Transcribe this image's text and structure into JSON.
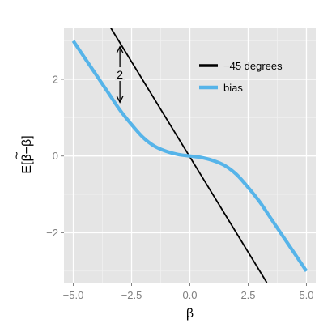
{
  "chart_data": {
    "type": "line",
    "xlabel": "β",
    "ylabel_parts": [
      "E[",
      "β",
      "−β]"
    ],
    "xlim": [
      -5.4,
      5.4
    ],
    "ylim": [
      -3.3,
      3.35
    ],
    "x_ticks": [
      -5.0,
      -2.5,
      0.0,
      2.5,
      5.0
    ],
    "x_tick_labels": [
      "−5.0",
      "−2.5",
      "0.0",
      "2.5",
      "5.0"
    ],
    "y_ticks": [
      -2,
      0,
      2
    ],
    "y_tick_labels": [
      "−2",
      "0",
      "2"
    ],
    "grid": true,
    "legend_position": "top-right",
    "series": [
      {
        "name": "−45 degrees",
        "color": "#000000",
        "x": [
          -3.4,
          3.3
        ],
        "y": [
          3.35,
          -3.3
        ]
      },
      {
        "name": "bias",
        "color": "#56b4e9",
        "x": [
          -5.0,
          -4.5,
          -4.0,
          -3.5,
          -3.0,
          -2.5,
          -2.0,
          -1.5,
          -1.0,
          -0.5,
          0.0,
          0.5,
          1.0,
          1.5,
          2.0,
          2.5,
          3.0,
          3.5,
          4.0,
          4.5,
          5.0
        ],
        "y": [
          3.0,
          2.55,
          2.1,
          1.65,
          1.2,
          0.82,
          0.48,
          0.25,
          0.12,
          0.04,
          0.0,
          -0.04,
          -0.12,
          -0.25,
          -0.48,
          -0.82,
          -1.2,
          -1.65,
          -2.1,
          -2.55,
          -3.0
        ]
      }
    ],
    "annotation": {
      "text": "2",
      "x": -3.0,
      "y_from": 2.85,
      "y_to": 1.4
    }
  }
}
